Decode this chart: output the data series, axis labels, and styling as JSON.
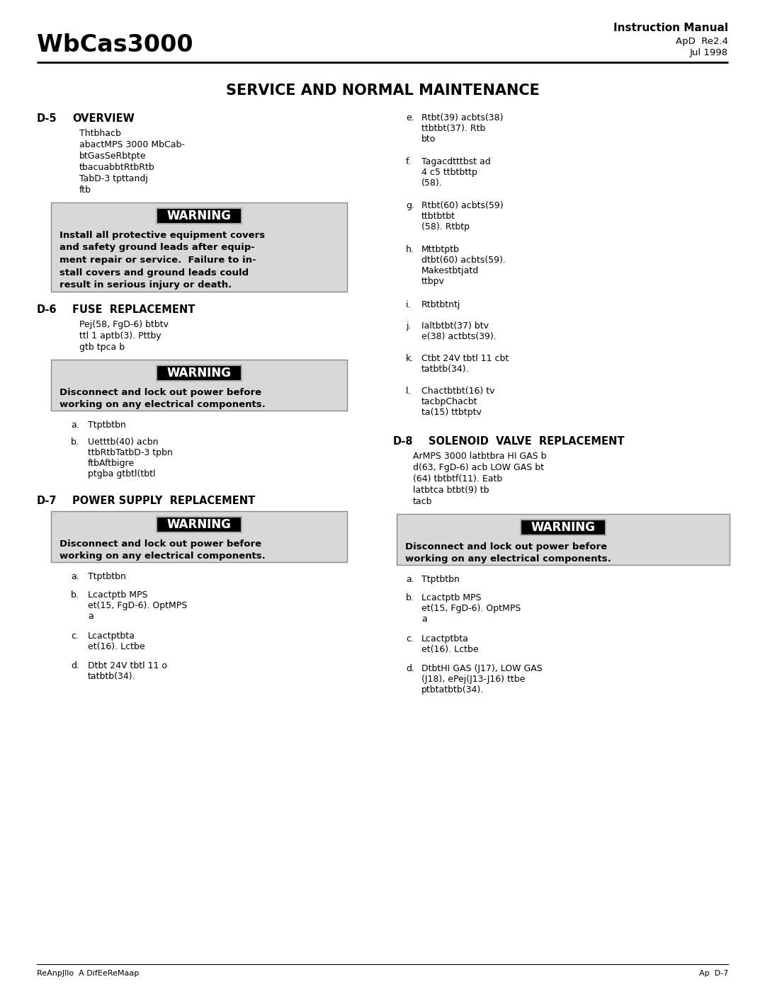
{
  "bg_color": "#ffffff",
  "page_bg": "#ffffff",
  "header_left": "WbCas3000",
  "header_right_line1": "Instruction Manual",
  "header_right_line2": "ApD  Re2.4",
  "header_right_line3": "Jul 1998",
  "page_title": "SERVICE AND NORMAL MAINTENANCE",
  "footer_left": "ReAnpJllo  A DifEeReMaap",
  "footer_right": "Ap  D-7",
  "warn_bg": "#d8d8d8",
  "warn_border": "#888888",
  "warn_label_bg": "#000000",
  "warn_label_color": "#ffffff",
  "warn_label_outline": "#888888",
  "sections_left": [
    {
      "id": "D-5",
      "title": "OVERVIEW",
      "body_indent": 65,
      "body": [
        "Thtbhacb",
        "abactMPS 3000 MbCab-",
        "btGasSeRbtpte",
        "tbacuabbtRtbRtb",
        "TabD-3 tpttandj",
        "ftb"
      ],
      "warning": {
        "text": "Install all protective equipment covers\nand safety ground leads after equip-\nment repair or service.  Failure to in-\nstall covers and ground leads could\nresult in serious injury or death."
      }
    },
    {
      "id": "D-6",
      "title": "FUSE  REPLACEMENT",
      "body_indent": 65,
      "body": [
        "Pej(58, FgD-6) btbtv",
        "ttl 1 aptb(3). Pttby",
        "gtb tpca b"
      ],
      "warning": {
        "text": "Disconnect and lock out power before\nworking on any electrical components."
      },
      "subitems": [
        {
          "label": "a.",
          "text": "Ttptbtbn"
        },
        {
          "label": "b.",
          "text": "Uetttb(40) acbn\nttbRtbTatbD-3 tpbn\nftbAftbigre\nptgba gtbtl(tbtl"
        }
      ]
    },
    {
      "id": "D-7",
      "title": "POWER SUPPLY  REPLACEMENT",
      "body_indent": 65,
      "body": [],
      "warning": {
        "text": "Disconnect and lock out power before\nworking on any electrical components."
      },
      "subitems": [
        {
          "label": "a.",
          "text": "Ttptbtbn"
        },
        {
          "label": "b.",
          "text": "Lcactptb MPS\net(15, FgD-6). OptMPS\na"
        },
        {
          "label": "c.",
          "text": "Lcactptbta\net(16). Lctbe"
        },
        {
          "label": "d.",
          "text": "Dtbt 24V tbtl 11 o\ntatbtb(34)."
        }
      ]
    }
  ],
  "right_items_e_to_l": [
    {
      "label": "e.",
      "text": "Rtbt(39) acbts(38)\nttbtbt(37). Rtb\nbto"
    },
    {
      "label": "f.",
      "text": "Tagacdtttbst ad\n4 c5 ttbtbttp\n(58)."
    },
    {
      "label": "g.",
      "text": "Rtbt(60) acbts(59)\nttbtbtbt\n(58). Rtbtp"
    },
    {
      "label": "h.",
      "text": "Mttbtptb\ndtbt(60) acbts(59).\nMakestbtjatd\nttbpv"
    },
    {
      "label": "i.",
      "text": "Rtbtbtntj"
    },
    {
      "label": "j.",
      "text": "Ialtbtbt(37) btv\ne(38) actbts(39)."
    },
    {
      "label": "k.",
      "text": "Ctbt 24V tbtl 11 cbt\ntatbtb(34)."
    },
    {
      "label": "l.",
      "text": "Chactbtbt(16) tv\ntacbpChacbt\nta(15) ttbtptv"
    }
  ],
  "section_d8": {
    "id": "D-8",
    "title": "SOLENOID  VALVE  REPLACEMENT",
    "body": [
      "ArMPS 3000 latbtbra HI GAS b",
      "d(63, FgD-6) acb LOW GAS bt",
      "(64) tbtbtf(11). Eatb",
      "latbtca btbt(9) tb",
      "tacb"
    ],
    "warning": {
      "text": "Disconnect and lock out power before\nworking on any electrical components."
    },
    "subitems": [
      {
        "label": "a.",
        "text": "Ttptbtbn"
      },
      {
        "label": "b.",
        "text": "Lcactptb MPS\net(15, FgD-6). OptMPS\na"
      },
      {
        "label": "c.",
        "text": "Lcactptbta\net(16). Lctbe"
      },
      {
        "label": "d.",
        "text": "DtbtHI GAS (J17), LOW GAS\n(J18), ePej(J13-J16) ttbe\nptbtatbtb(34)."
      }
    ]
  }
}
